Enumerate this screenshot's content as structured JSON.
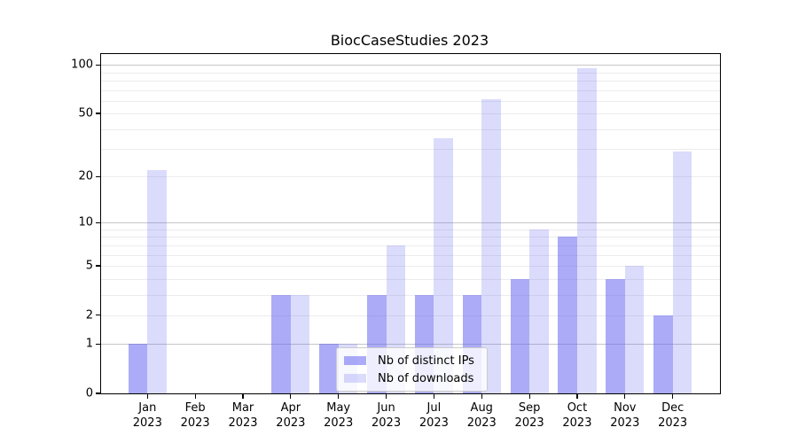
{
  "chart_data": {
    "type": "bar",
    "title": "BiocCaseStudies 2023",
    "categories": [
      "Jan",
      "Feb",
      "Mar",
      "Apr",
      "May",
      "Jun",
      "Jul",
      "Aug",
      "Sep",
      "Oct",
      "Nov",
      "Dec"
    ],
    "series": [
      {
        "name": "Nb of distinct IPs",
        "color": "rgba(87,87,242,0.5)",
        "values": [
          1,
          0,
          0,
          3,
          1,
          3,
          3,
          3,
          4,
          8,
          4,
          2
        ]
      },
      {
        "name": "Nb of downloads",
        "color": "rgba(87,87,242,0.21)",
        "values": [
          22,
          0,
          0,
          3,
          1,
          7,
          35,
          61,
          9,
          95,
          5,
          29
        ]
      }
    ],
    "x_axis": {
      "year_line": "2023"
    },
    "y_axis": {
      "scale": "log1p",
      "range": [
        0,
        100
      ],
      "ticks": [
        100,
        50,
        20,
        10,
        5,
        2,
        1,
        0
      ],
      "major_gridlines": [
        1,
        10,
        100
      ],
      "minor_gridlines": [
        2,
        3,
        4,
        5,
        6,
        7,
        8,
        9,
        20,
        30,
        40,
        50,
        60,
        70,
        80,
        90
      ]
    },
    "legend_position": "lower-center",
    "colors": {
      "accent": "#5757f2",
      "grid_minor": "#ececec",
      "grid_major": "#c6c6c6",
      "axis": "#000000",
      "background": "#ffffff"
    }
  }
}
